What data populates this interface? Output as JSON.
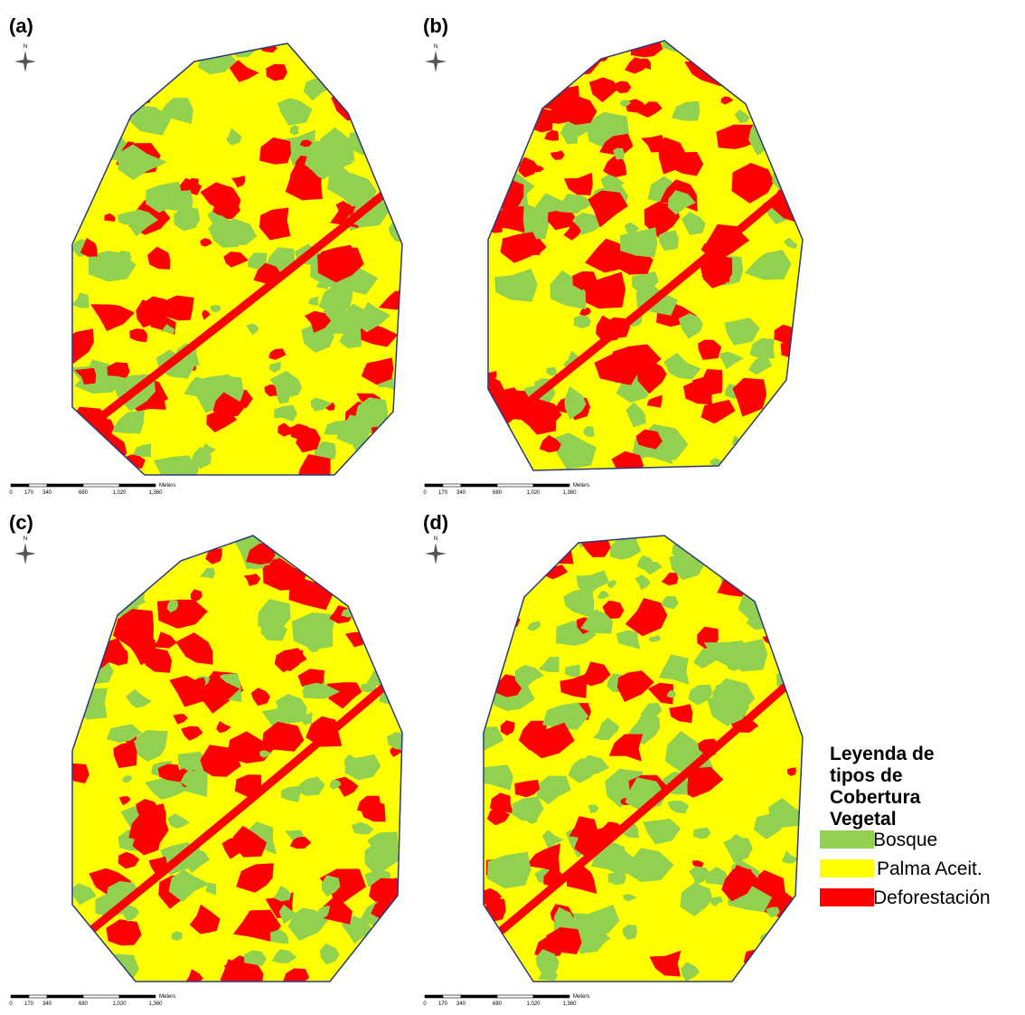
{
  "panels": [
    {
      "label": "(a)"
    },
    {
      "label": "(b)"
    },
    {
      "label": "(c)"
    },
    {
      "label": "(d)"
    }
  ],
  "north": "N",
  "scale_bar": {
    "ticks": [
      "0",
      "170",
      "340",
      "680",
      "1,020",
      "1,360"
    ],
    "unit": "Meters"
  },
  "legend": {
    "title": [
      "Leyenda de",
      "tipos de",
      "Cobertura",
      "Vegetal"
    ],
    "items": [
      {
        "label": "Bosque",
        "color": "#92d050"
      },
      {
        "label": "Palma Aceit.",
        "color": "#ffff00"
      },
      {
        "label": "Deforestación",
        "color": "#ff0000"
      }
    ]
  }
}
